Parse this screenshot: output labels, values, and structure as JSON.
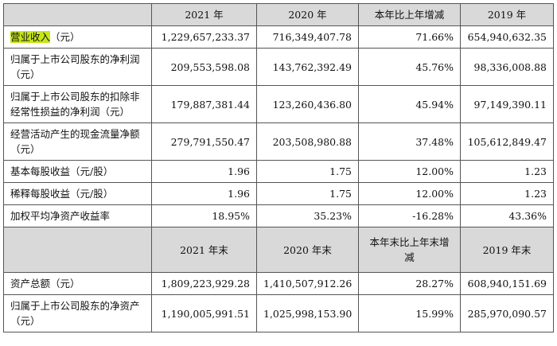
{
  "header1": [
    "",
    "2021 年",
    "2020 年",
    "本年比上年增减",
    "2019 年"
  ],
  "rows1": [
    {
      "label_hl": "营业收入",
      "label_rest": "（元）",
      "values": [
        "1,229,657,233.37",
        "716,349,407.78",
        "71.66%",
        "654,940,632.35"
      ]
    },
    {
      "label_hl": "",
      "label_rest": "归属于上市公司股东的净利润（元）",
      "values": [
        "209,553,598.08",
        "143,762,392.49",
        "45.76%",
        "98,336,008.88"
      ]
    },
    {
      "label_hl": "",
      "label_rest": "归属于上市公司股东的扣除非经常性损益的净利润（元）",
      "values": [
        "179,887,381.44",
        "123,260,436.80",
        "45.94%",
        "97,149,390.11"
      ]
    },
    {
      "label_hl": "",
      "label_rest": "经营活动产生的现金流量净额（元）",
      "values": [
        "279,791,550.47",
        "203,508,980.88",
        "37.48%",
        "105,612,849.47"
      ]
    },
    {
      "label_hl": "",
      "label_rest": "基本每股收益（元/股）",
      "values": [
        "1.96",
        "1.75",
        "12.00%",
        "1.23"
      ]
    },
    {
      "label_hl": "",
      "label_rest": "稀释每股收益（元/股）",
      "values": [
        "1.96",
        "1.75",
        "12.00%",
        "1.23"
      ]
    },
    {
      "label_hl": "",
      "label_rest": "加权平均净资产收益率",
      "values": [
        "18.95%",
        "35.23%",
        "-16.28%",
        "43.36%"
      ]
    }
  ],
  "header2": [
    "",
    "2021 年末",
    "2020 年末",
    "本年末比上年末增减",
    "2019 年末"
  ],
  "rows2": [
    {
      "label_rest": "资产总额（元）",
      "values": [
        "1,809,223,929.28",
        "1,410,507,912.26",
        "28.27%",
        "608,940,151.69"
      ]
    },
    {
      "label_rest": "归属于上市公司股东的净资产（元）",
      "values": [
        "1,190,005,991.51",
        "1,025,998,153.90",
        "15.99%",
        "285,970,090.57"
      ]
    }
  ],
  "colors": {
    "header_bg": "#d9d9d9",
    "highlight": "#c7e61a",
    "border": "#555555"
  }
}
